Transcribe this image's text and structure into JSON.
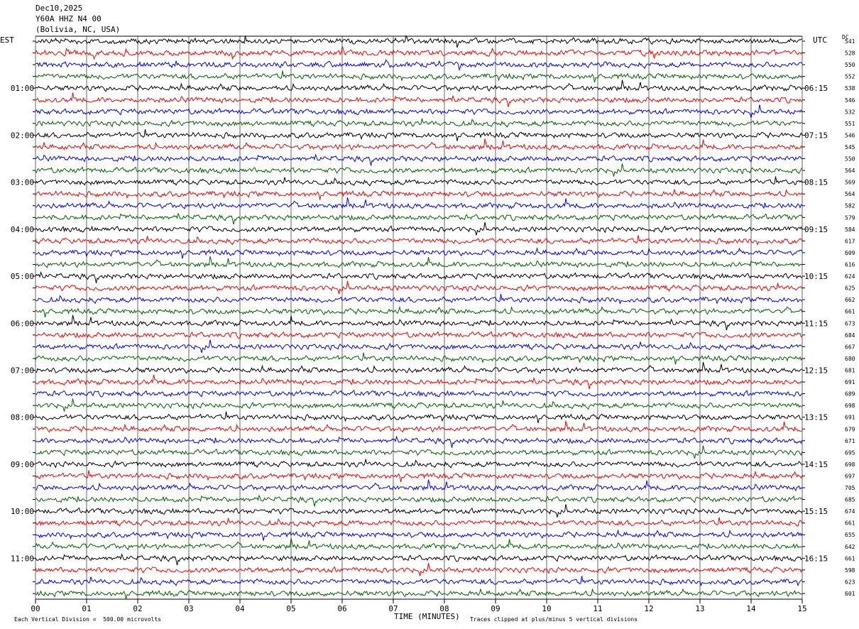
{
  "header": {
    "date": "Dec10,2025",
    "station": "Y60A HHZ N4 00",
    "location": "(Bolivia, NC, USA)"
  },
  "labels": {
    "left_tz": "EST",
    "right_tz": "UTC",
    "dc": "DC",
    "xlabel": "TIME (MINUTES)",
    "scale_note": "Each Vertical Division =  500.00 microvolts",
    "clip_note": "Traces clipped at plus/minus 5 vertical divisions"
  },
  "colors": {
    "cycle": [
      "#000000",
      "#ff0000",
      "#0000ff",
      "#006400"
    ],
    "grid": "#000000"
  },
  "chart_data": {
    "type": "line",
    "title": "Y60A HHZ N4 00",
    "xlabel": "TIME (MINUTES)",
    "xlim": [
      0,
      15
    ],
    "x_ticks": [
      "00",
      "01",
      "02",
      "03",
      "04",
      "05",
      "06",
      "07",
      "08",
      "09",
      "10",
      "11",
      "12",
      "13",
      "14",
      "15"
    ],
    "left_time_labels": [
      "01:00",
      "02:00",
      "03:00",
      "04:00",
      "05:00",
      "06:00",
      "07:00",
      "08:00",
      "09:00",
      "10:00",
      "11:00"
    ],
    "right_time_labels": [
      "06:15",
      "07:15",
      "08:15",
      "09:15",
      "10:15",
      "11:15",
      "12:15",
      "13:15",
      "14:15",
      "15:15",
      "16:15"
    ],
    "trace_count": 48,
    "dc_offsets": [
      "541",
      "528",
      "550",
      "552",
      "538",
      "546",
      "532",
      "551",
      "546",
      "545",
      "550",
      "564",
      "569",
      "564",
      "582",
      "579",
      "584",
      "617",
      "609",
      "616",
      "624",
      "625",
      "662",
      "661",
      "673",
      "684",
      "667",
      "680",
      "681",
      "691",
      "689",
      "698",
      "691",
      "679",
      "671",
      "695",
      "698",
      "697",
      "705",
      "685",
      "674",
      "661",
      "655",
      "642",
      "661",
      "598",
      "623",
      "601"
    ]
  }
}
